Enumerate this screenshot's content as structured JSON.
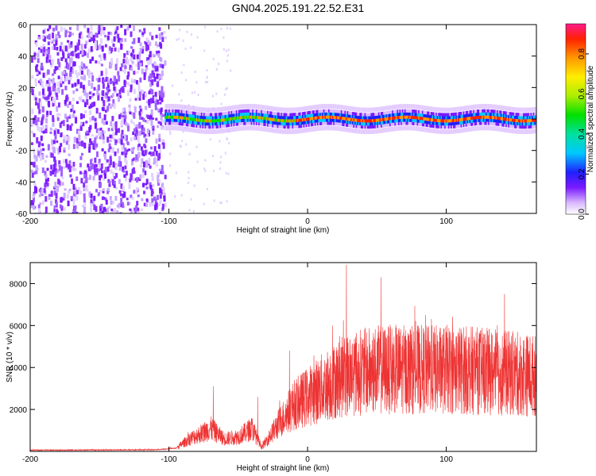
{
  "page": {
    "title": "GN04.2025.191.22.52.E31"
  },
  "chart_data": [
    {
      "type": "heatmap",
      "title": "GN04.2025.191.22.52.E31",
      "xlabel": "Height of straight line (km)",
      "ylabel": "Frequency (Hz)",
      "xlim": [
        -200,
        165
      ],
      "ylim": [
        -60,
        60
      ],
      "xticks": [
        -200,
        -100,
        0,
        100
      ],
      "yticks": [
        -60,
        -40,
        -20,
        0,
        20,
        40,
        60
      ],
      "colorbar": {
        "label": "Normalized spectral amplitude",
        "range": [
          0,
          0.95
        ],
        "ticks": [
          0.0,
          0.2,
          0.4,
          0.6,
          0.8
        ]
      },
      "grid": false,
      "description_values": {
        "noise_region_x": [
          -200,
          -103
        ],
        "signal_band_x": [
          -103,
          165
        ],
        "signal_center_hz": 0,
        "signal_halfwidth_hz": 6
      }
    },
    {
      "type": "line",
      "xlabel": "Height of straight line (km)",
      "ylabel": "SNR (10 * v/v)",
      "xlim": [
        -200,
        165
      ],
      "ylim": [
        0,
        9000
      ],
      "xticks": [
        -200,
        -100,
        0,
        100
      ],
      "yticks": [
        2000,
        4000,
        6000,
        8000
      ],
      "color": "#ee3333",
      "grid": false,
      "envelope": [
        {
          "x": -200,
          "y": 60
        },
        {
          "x": -150,
          "y": 70
        },
        {
          "x": -110,
          "y": 80
        },
        {
          "x": -95,
          "y": 150
        },
        {
          "x": -85,
          "y": 600
        },
        {
          "x": -75,
          "y": 900
        },
        {
          "x": -70,
          "y": 1100
        },
        {
          "x": -60,
          "y": 600
        },
        {
          "x": -50,
          "y": 700
        },
        {
          "x": -40,
          "y": 1100
        },
        {
          "x": -33,
          "y": 200
        },
        {
          "x": -20,
          "y": 1400
        },
        {
          "x": -10,
          "y": 2200
        },
        {
          "x": 0,
          "y": 2600
        },
        {
          "x": 15,
          "y": 3200
        },
        {
          "x": 30,
          "y": 3700
        },
        {
          "x": 50,
          "y": 3900
        },
        {
          "x": 80,
          "y": 3900
        },
        {
          "x": 110,
          "y": 3900
        },
        {
          "x": 130,
          "y": 3800
        },
        {
          "x": 150,
          "y": 3700
        },
        {
          "x": 165,
          "y": 3600
        }
      ],
      "peaks": [
        {
          "x": -68,
          "y": 3100
        },
        {
          "x": -36,
          "y": 2600
        },
        {
          "x": -13,
          "y": 4800
        },
        {
          "x": 18,
          "y": 6000
        },
        {
          "x": 28,
          "y": 8900
        },
        {
          "x": 53,
          "y": 8300
        },
        {
          "x": 85,
          "y": 6500
        },
        {
          "x": 142,
          "y": 7500
        }
      ]
    }
  ]
}
